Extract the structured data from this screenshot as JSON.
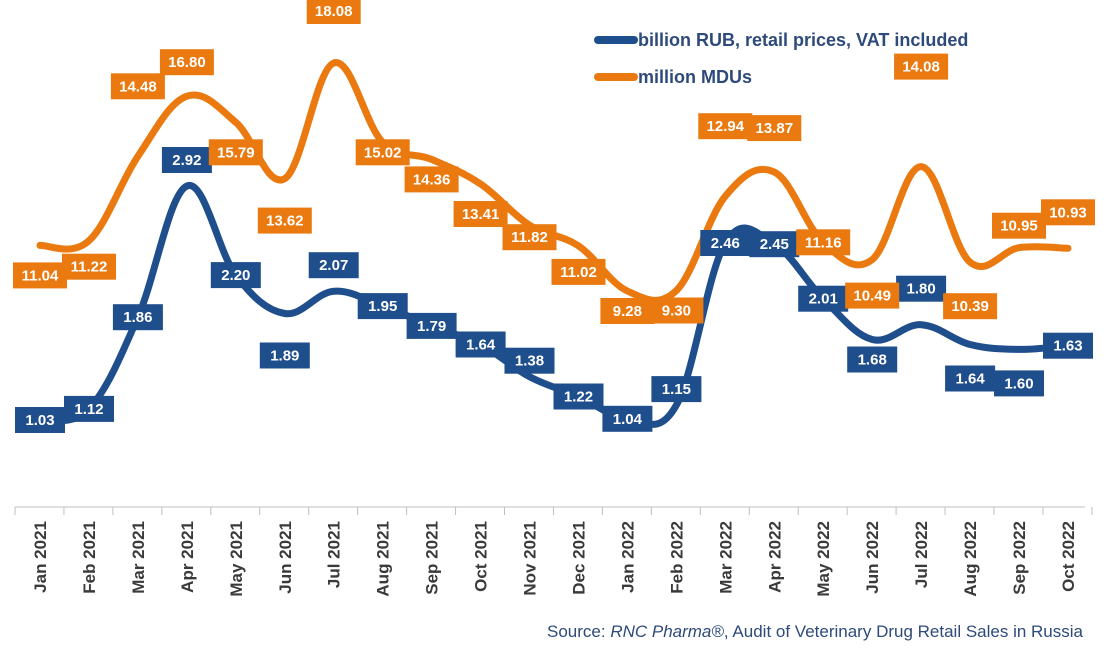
{
  "colors": {
    "rub": "#1f4e8c",
    "mdu": "#ea7a10",
    "axis": "#bfbfbf"
  },
  "chart_data": {
    "type": "line",
    "categories": [
      "Jan 2021",
      "Feb 2021",
      "Mar 2021",
      "Apr 2021",
      "May 2021",
      "Jun 2021",
      "Jul 2021",
      "Aug 2021",
      "Sep 2021",
      "Oct 2021",
      "Nov 2021",
      "Dec 2021",
      "Jan 2022",
      "Feb 2022",
      "Mar 2022",
      "Apr 2022",
      "May 2022",
      "Jun 2022",
      "Jul 2022",
      "Aug 2022",
      "Sep 2022",
      "Oct 2022"
    ],
    "series": [
      {
        "name": "billion RUB, retail prices, VAT included",
        "color": "#1f4e8c",
        "values": [
          1.03,
          1.12,
          1.86,
          2.92,
          2.2,
          1.89,
          2.07,
          1.95,
          1.79,
          1.64,
          1.38,
          1.22,
          1.04,
          1.15,
          2.46,
          2.45,
          2.01,
          1.68,
          1.8,
          1.64,
          1.6,
          1.63
        ],
        "labels": [
          "1.03",
          "1.12",
          "1.86",
          "2.92",
          "2.20",
          "1.89",
          "2.07",
          "1.95",
          "1.79",
          "1.64",
          "1.38",
          "1.22",
          "1.04",
          "1.15",
          "2.46",
          "2.45",
          "2.01",
          "1.68",
          "1.80",
          "1.64",
          "1.60",
          "1.63"
        ]
      },
      {
        "name": "million MDUs",
        "color": "#ea7a10",
        "values": [
          11.04,
          11.22,
          14.48,
          16.8,
          15.79,
          13.62,
          18.08,
          15.02,
          14.36,
          13.41,
          11.82,
          11.02,
          9.28,
          9.3,
          12.94,
          13.87,
          11.16,
          10.49,
          14.08,
          10.39,
          10.95,
          10.93
        ],
        "labels": [
          "11.04",
          "11.22",
          "14.48",
          "16.80",
          "15.79",
          "13.62",
          "18.08",
          "15.02",
          "14.36",
          "13.41",
          "11.82",
          "11.02",
          "9.28",
          "9.30",
          "12.94",
          "13.87",
          "11.16",
          "10.49",
          "14.08",
          "10.39",
          "10.95",
          "10.93"
        ]
      }
    ],
    "legend_position": "top-right",
    "grid": false
  },
  "source": {
    "prefix": "Source: ",
    "brand": "RNC Pharma®",
    "suffix": ", Audit of Veterinary Drug Retail Sales in Russia"
  }
}
